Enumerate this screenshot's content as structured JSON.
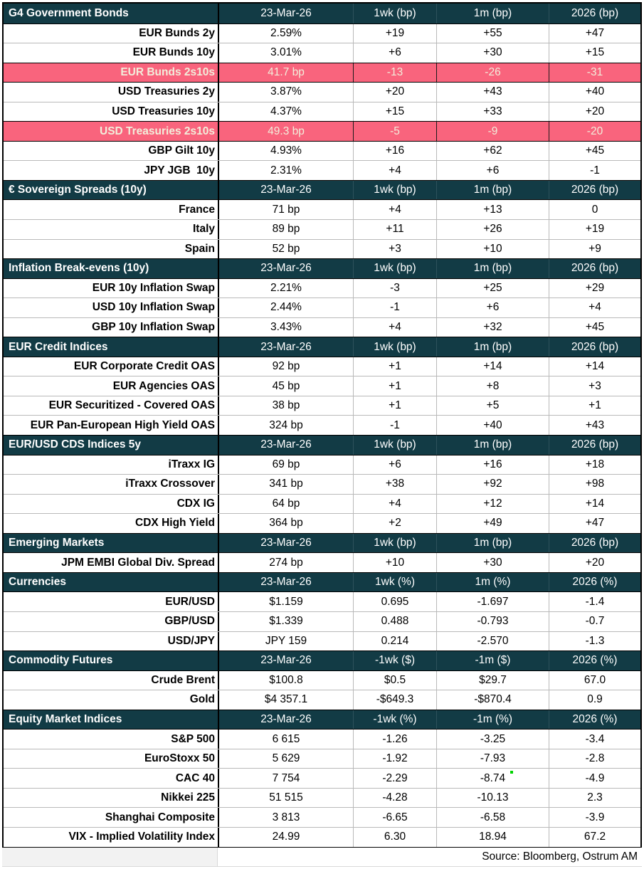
{
  "colors": {
    "header_bg": "#123B45",
    "header_text": "#FFFFFF",
    "highlight_bg": "#F9647D",
    "highlight_text": "#F2EEDB",
    "grid_line": "#B9B9B9",
    "outer_border": "#000000",
    "footer_left_bg": "#F2F2F2",
    "comment_marker": "#00D200"
  },
  "footer": {
    "source": "Source: Bloomberg, Ostrum AM"
  },
  "sections": [
    {
      "title": "G4 Government Bonds",
      "columns": [
        "23-Mar-26",
        "1wk (bp)",
        "1m (bp)",
        "2026 (bp)"
      ],
      "rows": [
        {
          "label": "EUR Bunds 2y",
          "values": [
            "2.59%",
            "+19",
            "+55",
            "+47"
          ]
        },
        {
          "label": "EUR Bunds 10y",
          "values": [
            "3.01%",
            "+6",
            "+30",
            "+15"
          ]
        },
        {
          "label": "EUR Bunds 2s10s",
          "values": [
            "41.7 bp",
            "-13",
            "-26",
            "-31"
          ],
          "highlight": true
        },
        {
          "label": "USD Treasuries 2y",
          "values": [
            "3.87%",
            "+20",
            "+43",
            "+40"
          ]
        },
        {
          "label": "USD Treasuries 10y",
          "values": [
            "4.37%",
            "+15",
            "+33",
            "+20"
          ]
        },
        {
          "label": "USD Treasuries 2s10s",
          "values": [
            "49.3 bp",
            "-5",
            "-9",
            "-20"
          ],
          "highlight": true
        },
        {
          "label": "GBP Gilt 10y",
          "values": [
            "4.93%",
            "+16",
            "+62",
            "+45"
          ]
        },
        {
          "label": "JPY JGB  10y",
          "values": [
            "2.31%",
            "+4",
            "+6",
            "-1"
          ]
        }
      ]
    },
    {
      "title": "€ Sovereign Spreads (10y)",
      "columns": [
        "23-Mar-26",
        "1wk (bp)",
        "1m (bp)",
        "2026 (bp)"
      ],
      "rows": [
        {
          "label": "France",
          "values": [
            "71 bp",
            "+4",
            "+13",
            "0"
          ]
        },
        {
          "label": "Italy",
          "values": [
            "89 bp",
            "+11",
            "+26",
            "+19"
          ]
        },
        {
          "label": "Spain",
          "values": [
            "52 bp",
            "+3",
            "+10",
            "+9"
          ]
        }
      ]
    },
    {
      "title": "Inflation Break-evens (10y)",
      "columns": [
        "23-Mar-26",
        "1wk (bp)",
        "1m (bp)",
        "2026 (bp)"
      ],
      "rows": [
        {
          "label": "EUR 10y Inflation Swap",
          "values": [
            "2.21%",
            "-3",
            "+25",
            "+29"
          ]
        },
        {
          "label": "USD 10y Inflation Swap",
          "values": [
            "2.44%",
            "-1",
            "+6",
            "+4"
          ]
        },
        {
          "label": "GBP 10y Inflation Swap",
          "values": [
            "3.43%",
            "+4",
            "+32",
            "+45"
          ]
        }
      ]
    },
    {
      "title": "EUR Credit Indices",
      "columns": [
        "23-Mar-26",
        "1wk (bp)",
        "1m (bp)",
        "2026 (bp)"
      ],
      "rows": [
        {
          "label": "EUR Corporate Credit OAS",
          "values": [
            "92 bp",
            "+1",
            "+14",
            "+14"
          ]
        },
        {
          "label": "EUR Agencies OAS",
          "values": [
            "45 bp",
            "+1",
            "+8",
            "+3"
          ]
        },
        {
          "label": "EUR Securitized - Covered OAS",
          "values": [
            "38 bp",
            "+1",
            "+5",
            "+1"
          ]
        },
        {
          "label": "EUR Pan-European High Yield OAS",
          "values": [
            "324 bp",
            "-1",
            "+40",
            "+43"
          ]
        }
      ]
    },
    {
      "title": "EUR/USD CDS Indices 5y",
      "columns": [
        "23-Mar-26",
        "1wk (bp)",
        "1m (bp)",
        "2026 (bp)"
      ],
      "rows": [
        {
          "label": "iTraxx IG",
          "values": [
            "69 bp",
            "+6",
            "+16",
            "+18"
          ]
        },
        {
          "label": "iTraxx Crossover",
          "values": [
            "341 bp",
            "+38",
            "+92",
            "+98"
          ]
        },
        {
          "label": "CDX IG",
          "values": [
            "64 bp",
            "+4",
            "+12",
            "+14"
          ]
        },
        {
          "label": "CDX High Yield",
          "values": [
            "364 bp",
            "+2",
            "+49",
            "+47"
          ]
        }
      ]
    },
    {
      "title": "Emerging Markets",
      "columns": [
        "23-Mar-26",
        "1wk (bp)",
        "1m (bp)",
        "2026 (bp)"
      ],
      "rows": [
        {
          "label": "JPM EMBI Global Div. Spread",
          "values": [
            "274 bp",
            "+10",
            "+30",
            "+20"
          ]
        }
      ]
    },
    {
      "title": "Currencies",
      "columns": [
        "23-Mar-26",
        "1wk (%)",
        "1m (%)",
        "2026 (%)"
      ],
      "rows": [
        {
          "label": "EUR/USD",
          "values": [
            "$1.159",
            "0.695",
            "-1.697",
            "-1.4"
          ]
        },
        {
          "label": "GBP/USD",
          "values": [
            "$1.339",
            "0.488",
            "-0.793",
            "-0.7"
          ]
        },
        {
          "label": "USD/JPY",
          "values": [
            "JPY 159",
            "0.214",
            "-2.570",
            "-1.3"
          ]
        }
      ]
    },
    {
      "title": "Commodity Futures",
      "columns": [
        "23-Mar-26",
        "-1wk ($)",
        "-1m ($)",
        "2026 (%)"
      ],
      "rows": [
        {
          "label": "Crude Brent",
          "values": [
            "$100.8",
            "$0.5",
            "$29.7",
            "67.0"
          ]
        },
        {
          "label": "Gold",
          "values": [
            "$4 357.1",
            "-$649.3",
            "-$870.4",
            "0.9"
          ]
        }
      ]
    },
    {
      "title": "Equity Market Indices",
      "columns": [
        "23-Mar-26",
        "-1wk (%)",
        "-1m (%)",
        "2026 (%)"
      ],
      "rows": [
        {
          "label": "S&P 500",
          "values": [
            "6 615",
            "-1.26",
            "-3.25",
            "-3.4"
          ]
        },
        {
          "label": "EuroStoxx 50",
          "values": [
            "5 629",
            "-1.92",
            "-7.93",
            "-2.8"
          ]
        },
        {
          "label": "CAC 40",
          "values": [
            "7 754",
            "-2.29",
            "-8.74",
            "-4.9"
          ],
          "marker_col": 2
        },
        {
          "label": "Nikkei 225",
          "values": [
            "51 515",
            "-4.28",
            "-10.13",
            "2.3"
          ]
        },
        {
          "label": "Shanghai Composite",
          "values": [
            "3 813",
            "-6.65",
            "-6.58",
            "-3.9"
          ]
        },
        {
          "label": "VIX - Implied Volatility Index",
          "values": [
            "24.99",
            "6.30",
            "18.94",
            "67.2"
          ]
        }
      ]
    }
  ]
}
